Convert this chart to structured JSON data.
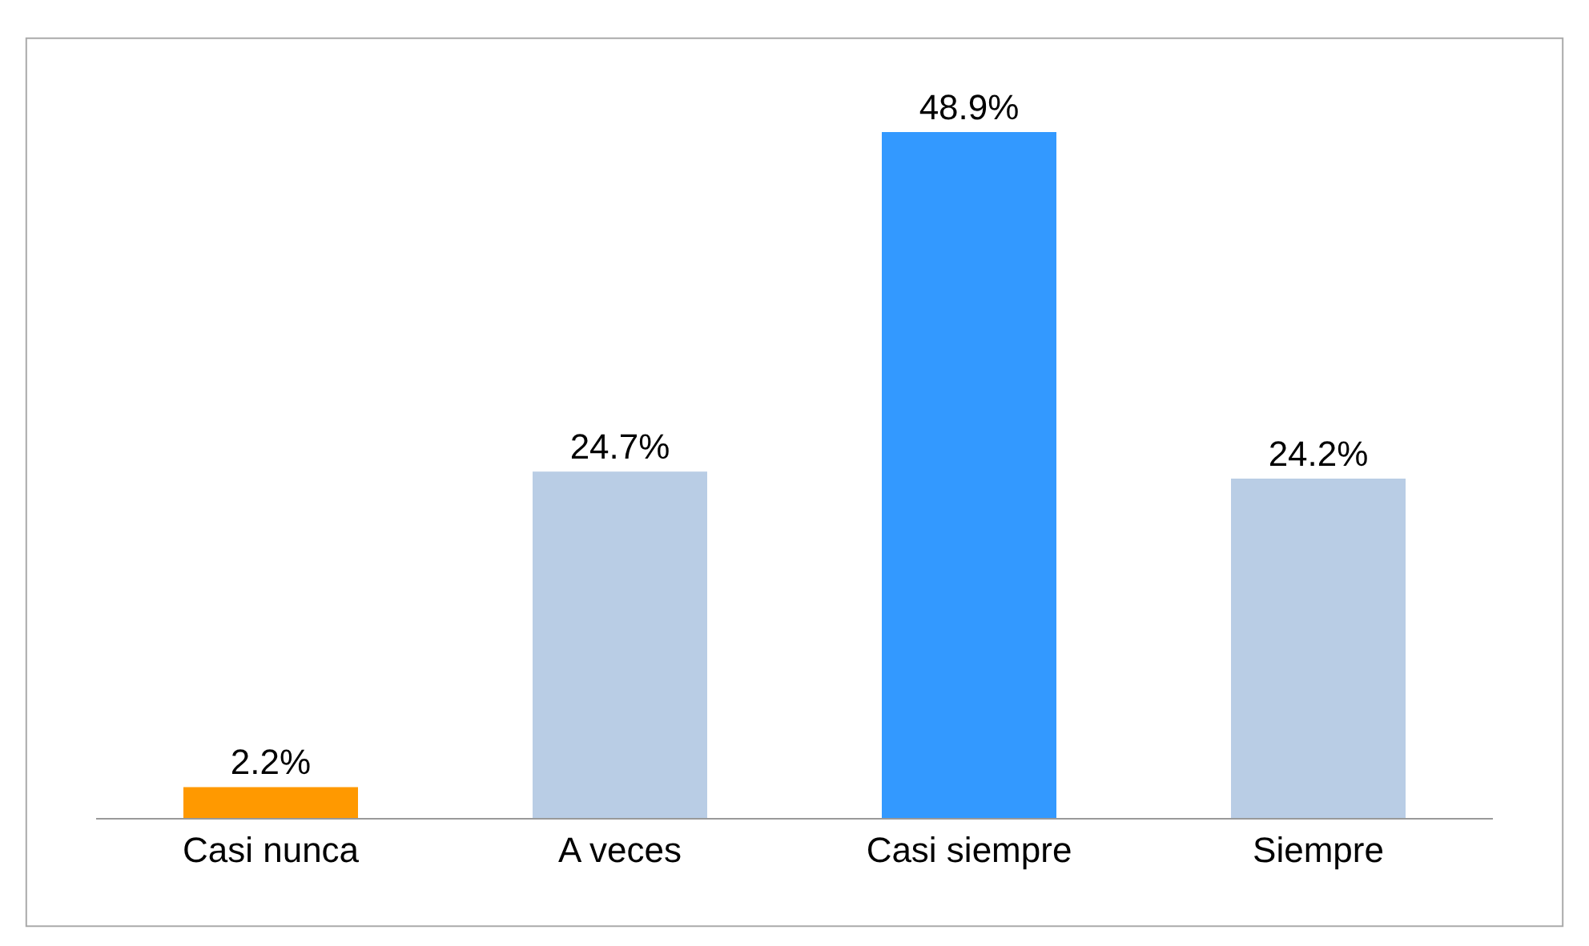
{
  "chart_data": {
    "type": "bar",
    "categories": [
      "Casi nunca",
      "A veces",
      "Casi siempre",
      "Siempre"
    ],
    "values": [
      2.2,
      24.7,
      48.9,
      24.2
    ],
    "value_labels": [
      "2.2%",
      "24.7%",
      "48.9%",
      "24.2%"
    ],
    "colors": [
      "#ff9900",
      "#b9cde5",
      "#3399ff",
      "#b9cde5"
    ]
  }
}
